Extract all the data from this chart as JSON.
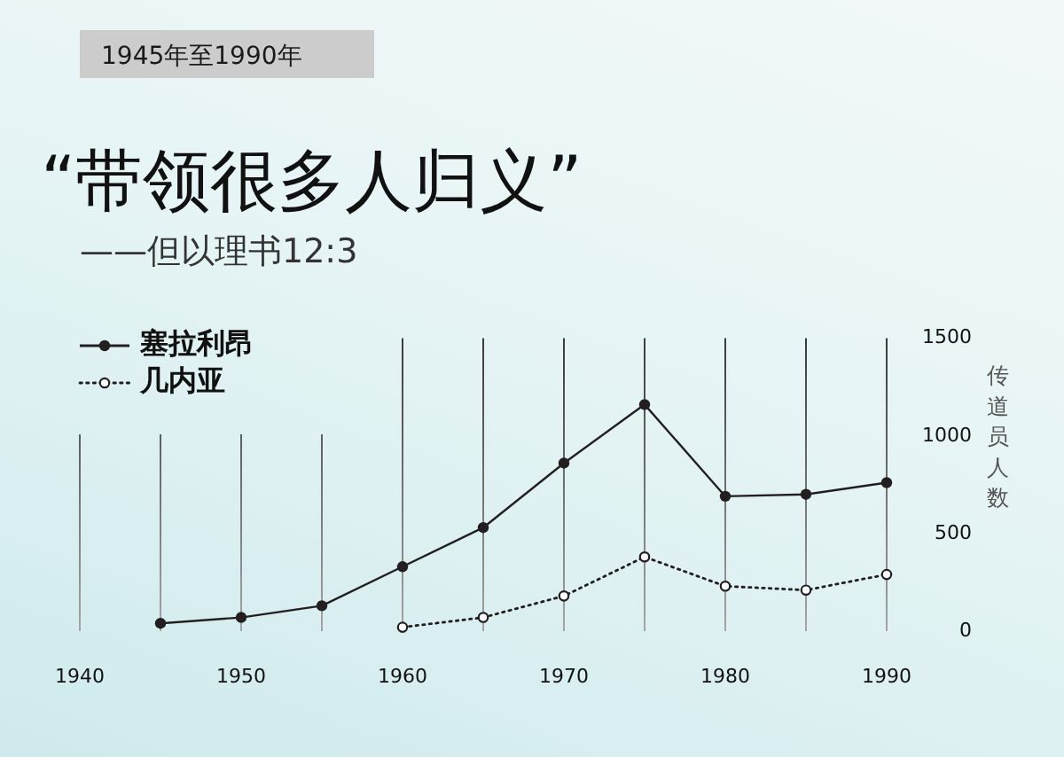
{
  "chart_data": {
    "type": "line",
    "title": "“带领很多人归义”",
    "subtitle": "——但以理书12:3",
    "ylabel": "传道员人数",
    "annotations": [
      "1945年至1990年"
    ],
    "x": [
      1945,
      1950,
      1955,
      1960,
      1965,
      1970,
      1975,
      1980,
      1985,
      1990
    ],
    "series": [
      {
        "name": "塞拉利昂",
        "color": "#231f20",
        "line_style": "solid",
        "values": [
          40,
          70,
          130,
          330,
          530,
          860,
          1160,
          690,
          700,
          760
        ]
      },
      {
        "name": "几内亚",
        "color": "#231f20",
        "line_style": "dotted",
        "values": [
          null,
          null,
          null,
          20,
          70,
          180,
          380,
          230,
          210,
          290
        ]
      }
    ],
    "xlim": [
      1940,
      1990
    ],
    "xticks": [
      1940,
      {
        "value": 1945,
        "label": null
      },
      1950,
      {
        "value": 1955,
        "label": null
      },
      1960,
      {
        "value": 1965,
        "label": null
      },
      1970,
      {
        "value": 1975,
        "label": null
      },
      1980,
      {
        "value": 1985,
        "label": null
      },
      1990
    ],
    "ylim": [
      0,
      1500
    ],
    "yticks": [
      0,
      500,
      1000,
      1500
    ],
    "grid": "x",
    "legend": "top left",
    "marker": "circle"
  }
}
